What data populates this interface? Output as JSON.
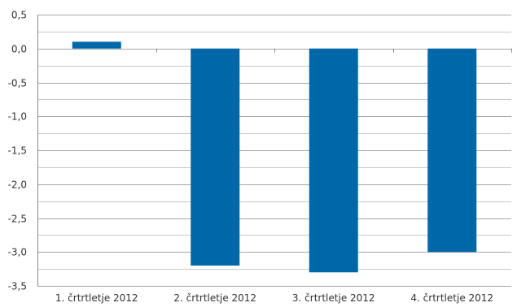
{
  "chart_data": {
    "type": "bar",
    "title": "",
    "xlabel": "",
    "ylabel": "",
    "categories": [
      "1. črtrtletje 2012",
      "2. črtrtletje 2012",
      "3. črtrtletje 2012",
      "4. črtrtletje 2012"
    ],
    "values": [
      0.1,
      -3.2,
      -3.3,
      -3.0
    ],
    "ylim": [
      -3.5,
      0.5
    ],
    "yticks": [
      "0,5",
      "0,0",
      "-0,5",
      "-1,0",
      "-1,5",
      "-2,0",
      "-2,5",
      "-3,0",
      "-3,5"
    ],
    "grid": true,
    "legend": "none",
    "bar_color": "#0068a8"
  }
}
